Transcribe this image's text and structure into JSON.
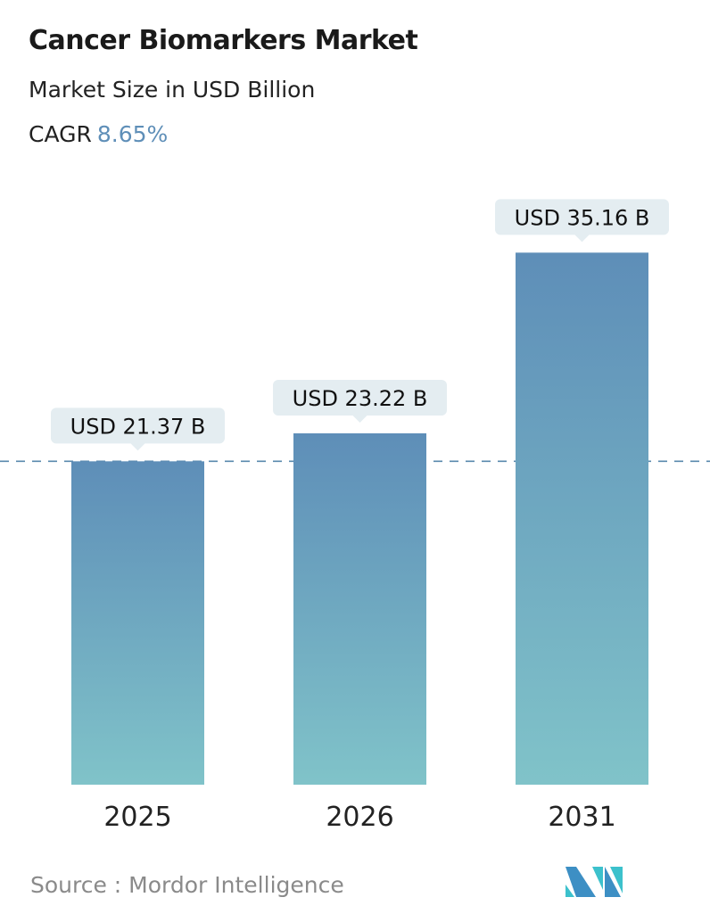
{
  "title": "Cancer Biomarkers Market",
  "subtitle": "Market Size in USD Billion",
  "cagr_label": "CAGR",
  "cagr_value": "8.65%",
  "source": "Source :  Mordor Intelligence",
  "logo_text": "Mordor Intelligence",
  "colors": {
    "bar_top": "#5e8eb8",
    "bar_bottom": "#80c3c9",
    "accent": "#5f8fb8",
    "label_bg": "#e4edf1"
  },
  "chart_data": {
    "type": "bar",
    "categories": [
      "2025",
      "2026",
      "2031"
    ],
    "values": [
      21.37,
      23.22,
      35.16
    ],
    "data_labels": [
      "USD 21.37 B",
      "USD 23.22 B",
      "USD 35.16 B"
    ],
    "ylabel": "Market Size in USD Billion",
    "reference_line": 21.37,
    "grid": false
  }
}
